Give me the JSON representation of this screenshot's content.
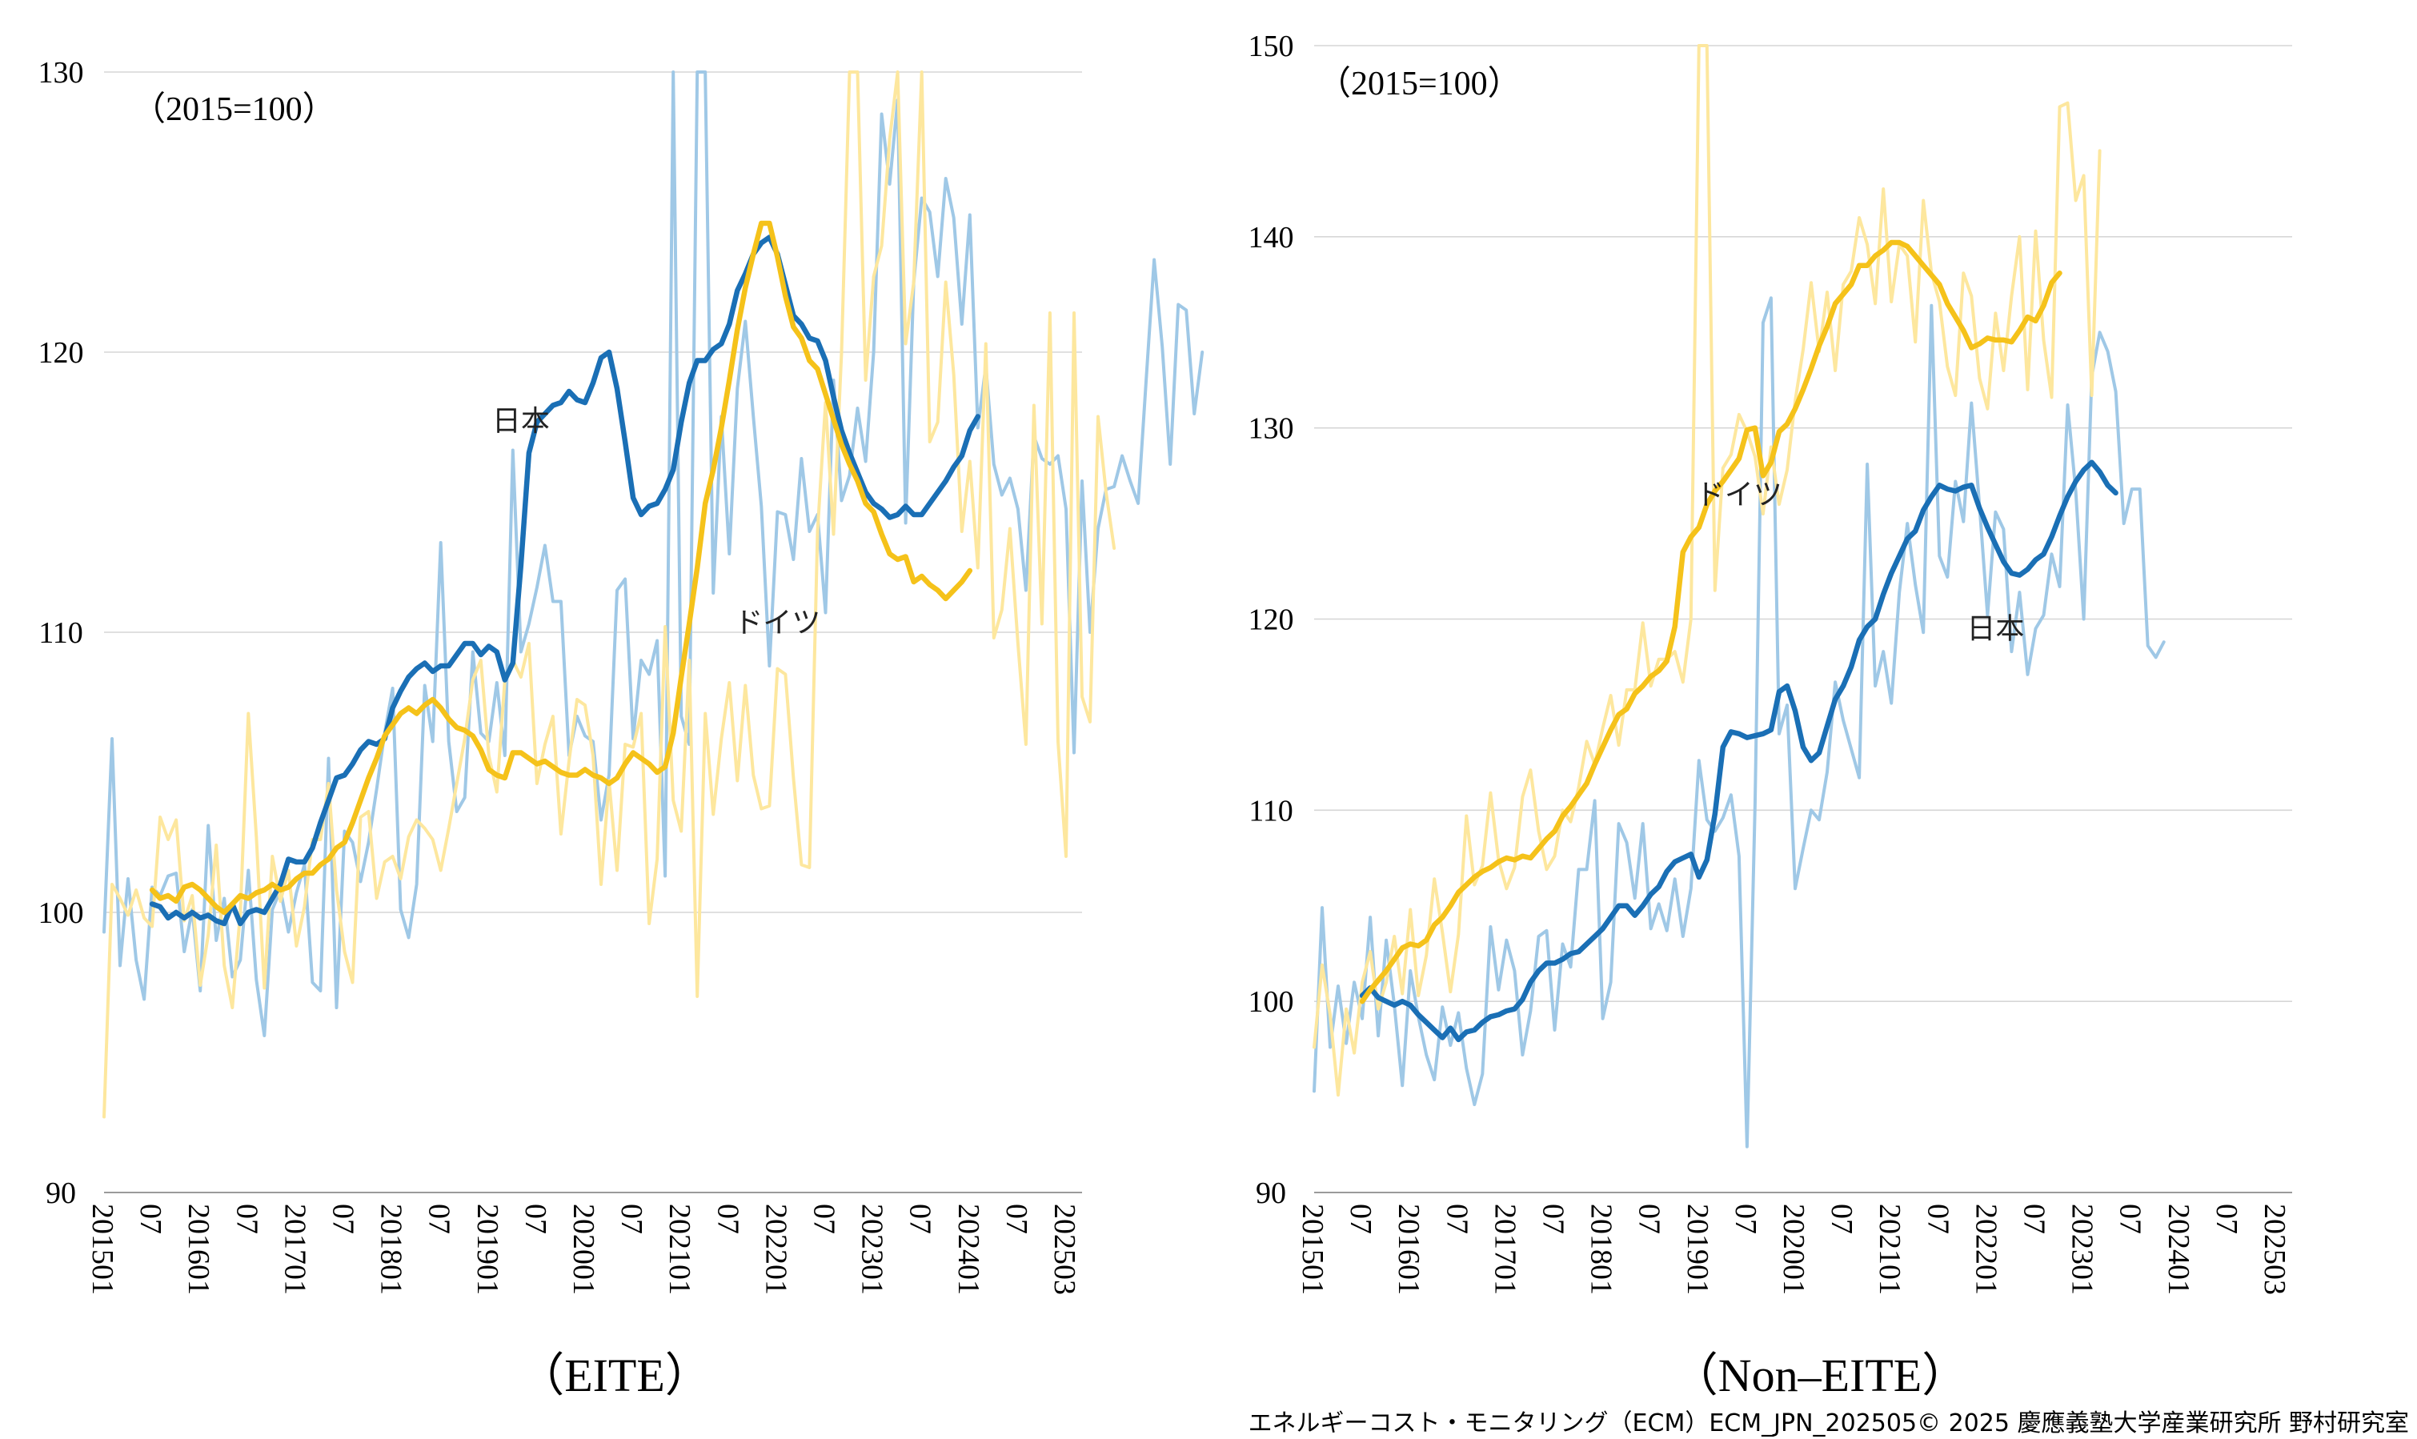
{
  "footer": "エネルギーコスト・モニタリング（ECM）ECM_JPN_202505© 2025 慶應義塾大学産業研究所 野村研究室",
  "chart_data": [
    {
      "type": "line",
      "title": "（EITE）",
      "base_note": "（2015=100）",
      "ylim": [
        90,
        130
      ],
      "yticks": [
        90,
        100,
        110,
        120,
        130
      ],
      "x_tick_labels": [
        "201501",
        "07",
        "201601",
        "07",
        "201701",
        "07",
        "201801",
        "07",
        "201901",
        "07",
        "202001",
        "07",
        "202101",
        "07",
        "202201",
        "07",
        "202301",
        "07",
        "202401",
        "07",
        "202503"
      ],
      "x_start": "2015-01",
      "x_end": "2025-03",
      "grid": true,
      "annotations": [
        {
          "text": "日本",
          "x": "2019-05",
          "y": 117.2
        },
        {
          "text": "ドイツ",
          "x": "2022-01",
          "y": 110.0
        }
      ],
      "series": [
        {
          "name": "日本",
          "kind": "smoothed",
          "color": "#1a6fb5",
          "start": "2015-07",
          "values": [
            100.3,
            100.2,
            99.8,
            100.0,
            99.8,
            100.0,
            99.8,
            99.9,
            99.7,
            99.6,
            100.3,
            99.6,
            100.0,
            100.1,
            100.0,
            100.5,
            101.0,
            101.9,
            101.8,
            101.8,
            102.3,
            103.2,
            104.0,
            104.8,
            104.9,
            105.3,
            105.8,
            106.1,
            106.0,
            106.2,
            107.3,
            107.9,
            108.4,
            108.7,
            108.9,
            108.6,
            108.8,
            108.8,
            109.2,
            109.6,
            109.6,
            109.2,
            109.5,
            109.3,
            108.3,
            108.9,
            112.4,
            116.4,
            117.5,
            117.8,
            118.1,
            118.2,
            118.6,
            118.3,
            118.2,
            118.9,
            119.8,
            120.0,
            118.7,
            116.8,
            114.8,
            114.2,
            114.5,
            114.6,
            115.1,
            115.8,
            117.5,
            118.9,
            119.7,
            119.7,
            120.1,
            120.3,
            121.0,
            122.2,
            122.8,
            123.5,
            123.9,
            124.1,
            123.5,
            122.4,
            121.3,
            121.0,
            120.5,
            120.4,
            119.7,
            118.4,
            117.2,
            116.4,
            115.7,
            115.0,
            114.6,
            114.4,
            114.1,
            114.2,
            114.5,
            114.2,
            114.2,
            114.6,
            115.0,
            115.4,
            115.9,
            116.3,
            117.2,
            117.7
          ]
        },
        {
          "name": "ドイツ",
          "kind": "smoothed",
          "color": "#f5c21a",
          "start": "2015-07",
          "values": [
            100.8,
            100.5,
            100.6,
            100.4,
            100.9,
            101.0,
            100.8,
            100.5,
            100.2,
            100.0,
            100.3,
            100.6,
            100.5,
            100.7,
            100.8,
            101.0,
            100.8,
            100.9,
            101.2,
            101.4,
            101.4,
            101.7,
            101.9,
            102.3,
            102.5,
            103.2,
            104.0,
            104.8,
            105.5,
            106.3,
            106.7,
            107.1,
            107.3,
            107.1,
            107.4,
            107.6,
            107.3,
            106.9,
            106.6,
            106.5,
            106.3,
            105.8,
            105.1,
            104.9,
            104.8,
            105.7,
            105.7,
            105.5,
            105.3,
            105.4,
            105.2,
            105.0,
            104.9,
            104.9,
            105.1,
            104.9,
            104.8,
            104.6,
            104.8,
            105.3,
            105.7,
            105.5,
            105.3,
            105.0,
            105.2,
            106.4,
            108.4,
            110.3,
            112.3,
            114.6,
            115.8,
            117.3,
            119.0,
            120.8,
            122.3,
            123.5,
            124.6,
            124.6,
            123.4,
            122.0,
            120.9,
            120.5,
            119.7,
            119.4,
            118.5,
            117.6,
            116.7,
            116.0,
            115.4,
            114.6,
            114.3,
            113.5,
            112.8,
            112.6,
            112.7,
            111.8,
            112.0,
            111.7,
            111.5,
            111.2,
            111.5,
            111.8,
            112.2
          ]
        },
        {
          "name": "日本",
          "kind": "monthly",
          "color": "#9fc8e6",
          "start": "2015-01",
          "values": [
            99.3,
            106.2,
            98.1,
            101.2,
            98.3,
            96.9,
            100.9,
            100.6,
            101.3,
            101.4,
            98.6,
            100.1,
            97.2,
            103.1,
            99.0,
            100.5,
            97.7,
            98.3,
            101.5,
            97.6,
            95.6,
            100.1,
            100.8,
            99.3,
            100.7,
            101.7,
            97.5,
            97.2,
            105.5,
            96.6,
            102.9,
            102.5,
            101.1,
            102.5,
            104.4,
            106.4,
            108.0,
            100.1,
            99.1,
            101.0,
            108.1,
            106.1,
            113.2,
            106.1,
            103.6,
            104.1,
            109.3,
            106.4,
            106.1,
            108.2,
            105.6,
            116.5,
            109.3,
            110.3,
            111.6,
            113.1,
            111.1,
            111.1,
            105.6,
            107.0,
            106.3,
            106.1,
            103.3,
            104.9,
            111.5,
            111.9,
            106.2,
            109.0,
            108.5,
            109.7,
            101.3,
            131.0,
            107.0,
            106.0,
            131.0,
            131.0,
            111.4,
            117.7,
            112.8,
            118.7,
            121.1,
            117.7,
            114.5,
            108.8,
            114.3,
            114.2,
            112.6,
            116.2,
            113.6,
            114.2,
            110.7,
            119.0,
            114.7,
            115.6,
            118.0,
            116.1,
            120.0,
            128.5,
            126.0,
            129.0,
            113.9,
            122.5,
            125.5,
            125.0,
            122.7,
            126.2,
            124.8,
            121.0,
            124.9,
            117.3,
            119.5,
            116.0,
            114.9,
            115.5,
            114.4,
            111.5,
            117.0,
            116.2,
            116.0,
            116.3,
            114.4,
            105.7,
            115.4,
            110.0,
            113.7,
            115.1,
            115.2,
            116.3,
            115.4,
            114.6,
            119.0,
            123.3,
            120.2,
            116.0,
            121.7,
            121.5,
            117.8,
            120.0
          ]
        },
        {
          "name": "ドイツ",
          "kind": "monthly",
          "color": "#fde79e",
          "start": "2015-01",
          "values": [
            92.7,
            101.0,
            100.5,
            99.9,
            100.8,
            99.8,
            99.5,
            103.4,
            102.6,
            103.3,
            99.7,
            100.6,
            97.4,
            99.2,
            102.4,
            98.1,
            96.6,
            100.0,
            107.1,
            102.7,
            97.3,
            102.0,
            100.4,
            101.5,
            98.8,
            100.2,
            102.6,
            102.6,
            104.6,
            100.8,
            98.6,
            97.5,
            103.4,
            103.6,
            100.5,
            101.8,
            102.0,
            101.2,
            102.7,
            103.3,
            103.0,
            102.6,
            101.5,
            103.0,
            104.6,
            106.2,
            108.3,
            109.0,
            105.6,
            104.3,
            108.3,
            109.0,
            108.4,
            109.6,
            104.6,
            106.0,
            107.0,
            102.8,
            105.4,
            107.6,
            107.4,
            105.6,
            101.0,
            104.7,
            101.5,
            106.0,
            105.9,
            107.1,
            99.6,
            101.9,
            110.2,
            104.0,
            102.9,
            109.0,
            97.0,
            107.1,
            103.5,
            106.2,
            108.2,
            104.7,
            108.1,
            104.9,
            103.7,
            103.8,
            108.7,
            108.5,
            104.8,
            101.7,
            101.6,
            113.6,
            118.2,
            113.5,
            120.0,
            131.0,
            131.0,
            119.0,
            122.7,
            123.8,
            127.6,
            131.0,
            120.3,
            122.5,
            131.0,
            116.8,
            117.5,
            122.5,
            119.2,
            113.6,
            116.1,
            112.3,
            120.3,
            109.8,
            110.8,
            113.7,
            109.6,
            106.0,
            118.1,
            110.3,
            121.4,
            106.1,
            102.0,
            121.4,
            107.7,
            106.8,
            117.7,
            115.0,
            113.0
          ]
        }
      ]
    },
    {
      "type": "line",
      "title": "（Non–EITE）",
      "base_note": "（2015=100）",
      "ylim": [
        90,
        150
      ],
      "yticks": [
        90,
        100,
        110,
        120,
        130,
        140,
        150
      ],
      "x_tick_labels": [
        "201501",
        "07",
        "201601",
        "07",
        "201701",
        "07",
        "201801",
        "07",
        "201901",
        "07",
        "202001",
        "07",
        "202101",
        "07",
        "202201",
        "07",
        "202301",
        "07",
        "202401",
        "07",
        "202503"
      ],
      "x_start": "2015-01",
      "x_end": "2025-03",
      "grid": true,
      "annotations": [
        {
          "text": "ドイツ",
          "x": "2019-06",
          "y": 126.0
        },
        {
          "text": "日本",
          "x": "2022-02",
          "y": 119.0
        }
      ],
      "series": [
        {
          "name": "日本",
          "kind": "smoothed",
          "color": "#1a6fb5",
          "start": "2015-07",
          "values": [
            100.3,
            100.7,
            100.2,
            100.0,
            99.8,
            100.0,
            99.8,
            99.3,
            98.9,
            98.5,
            98.1,
            98.6,
            98.0,
            98.4,
            98.5,
            98.9,
            99.2,
            99.3,
            99.5,
            99.6,
            100.1,
            101.0,
            101.6,
            102.0,
            102.0,
            102.2,
            102.5,
            102.6,
            103.0,
            103.4,
            103.8,
            104.4,
            105.0,
            105.0,
            104.5,
            105.0,
            105.6,
            106.0,
            106.8,
            107.3,
            107.5,
            107.7,
            106.5,
            107.4,
            109.8,
            113.3,
            114.1,
            114.0,
            113.8,
            113.9,
            114.0,
            114.2,
            116.2,
            116.5,
            115.2,
            113.3,
            112.6,
            113.0,
            114.4,
            115.8,
            116.5,
            117.5,
            118.9,
            119.6,
            120.0,
            121.3,
            122.4,
            123.3,
            124.2,
            124.6,
            125.7,
            126.4,
            127.0,
            126.8,
            126.7,
            126.9,
            127.0,
            125.8,
            124.8,
            123.9,
            123.0,
            122.4,
            122.3,
            122.6,
            123.1,
            123.4,
            124.3,
            125.4,
            126.4,
            127.2,
            127.8,
            128.2,
            127.7,
            127.0,
            126.6
          ]
        },
        {
          "name": "ドイツ",
          "kind": "smoothed",
          "color": "#f5c21a",
          "start": "2015-07",
          "values": [
            100.0,
            100.6,
            101.1,
            101.6,
            102.2,
            102.8,
            103.0,
            102.9,
            103.2,
            104.0,
            104.4,
            105.0,
            105.7,
            106.1,
            106.5,
            106.8,
            107.0,
            107.3,
            107.5,
            107.4,
            107.6,
            107.5,
            108.0,
            108.5,
            108.9,
            109.7,
            110.2,
            110.8,
            111.4,
            112.4,
            113.3,
            114.2,
            115.0,
            115.3,
            116.1,
            116.5,
            117.0,
            117.3,
            117.8,
            119.6,
            123.5,
            124.3,
            124.8,
            126.0,
            126.7,
            127.2,
            127.8,
            128.4,
            129.9,
            130.0,
            127.5,
            128.2,
            129.8,
            130.2,
            131.0,
            132.0,
            133.1,
            134.3,
            135.3,
            136.5,
            137.0,
            137.5,
            138.5,
            138.5,
            139.0,
            139.3,
            139.7,
            139.7,
            139.5,
            139.0,
            138.5,
            138.0,
            137.5,
            136.5,
            135.8,
            135.1,
            134.2,
            134.4,
            134.7,
            134.6,
            134.6,
            134.5,
            135.1,
            135.8,
            135.6,
            136.4,
            137.6,
            138.1
          ]
        },
        {
          "name": "日本",
          "kind": "monthly",
          "color": "#9fc8e6",
          "start": "2015-01",
          "values": [
            95.3,
            104.9,
            97.6,
            100.8,
            97.8,
            101.0,
            99.1,
            104.4,
            98.2,
            103.2,
            99.8,
            95.6,
            101.6,
            99.2,
            97.2,
            95.9,
            99.7,
            97.7,
            99.4,
            96.5,
            94.6,
            96.2,
            103.9,
            100.6,
            103.2,
            101.6,
            97.2,
            99.5,
            103.4,
            103.7,
            98.5,
            103.0,
            101.8,
            106.9,
            106.9,
            110.5,
            99.1,
            101.0,
            109.3,
            108.3,
            105.4,
            109.3,
            103.8,
            105.1,
            103.7,
            106.4,
            103.4,
            105.9,
            112.6,
            109.5,
            108.9,
            109.6,
            110.8,
            107.6,
            92.4,
            110.3,
            135.5,
            136.8,
            114.0,
            115.5,
            105.9,
            108.0,
            110.0,
            109.5,
            112.0,
            116.7,
            114.7,
            113.2,
            111.7,
            128.1,
            116.5,
            118.3,
            115.6,
            121.4,
            125.0,
            121.8,
            119.3,
            136.4,
            123.3,
            122.2,
            127.2,
            125.1,
            131.3,
            125.9,
            120.2,
            125.6,
            124.7,
            118.3,
            121.4,
            117.1,
            119.5,
            120.2,
            123.4,
            121.7,
            131.2,
            126.7,
            120.0,
            132.7,
            135.0,
            134.0,
            131.9,
            125.0,
            126.8,
            126.8,
            118.6,
            118.0,
            118.8
          ]
        },
        {
          "name": "ドイツ",
          "kind": "monthly",
          "color": "#fde79e",
          "start": "2015-01",
          "values": [
            97.6,
            101.9,
            99.3,
            95.1,
            99.6,
            97.3,
            101.0,
            102.6,
            99.6,
            101.0,
            103.4,
            100.4,
            104.8,
            100.3,
            102.4,
            106.4,
            103.6,
            100.5,
            103.5,
            109.7,
            106.1,
            107.1,
            110.9,
            107.4,
            105.9,
            107.0,
            110.7,
            112.1,
            108.9,
            106.9,
            107.6,
            110.0,
            109.4,
            111.2,
            113.6,
            112.4,
            114.3,
            116.0,
            113.4,
            116.3,
            116.3,
            119.8,
            116.5,
            117.9,
            117.9,
            118.3,
            116.7,
            120.0,
            150.0,
            150.0,
            121.5,
            127.9,
            128.6,
            130.7,
            129.8,
            128.5,
            125.5,
            129.0,
            126.0,
            127.8,
            131.4,
            134.1,
            137.6,
            134.0,
            137.1,
            133.0,
            137.5,
            138.2,
            141.0,
            139.6,
            136.5,
            142.5,
            136.6,
            139.6,
            139.0,
            134.5,
            141.9,
            138.1,
            136.6,
            133.2,
            131.7,
            138.1,
            136.9,
            132.6,
            131.0,
            136.0,
            133.0,
            136.9,
            140.0,
            132.0,
            140.3,
            134.6,
            131.6,
            146.8,
            147.0,
            141.9,
            143.2,
            131.7,
            144.5
          ]
        }
      ]
    }
  ]
}
